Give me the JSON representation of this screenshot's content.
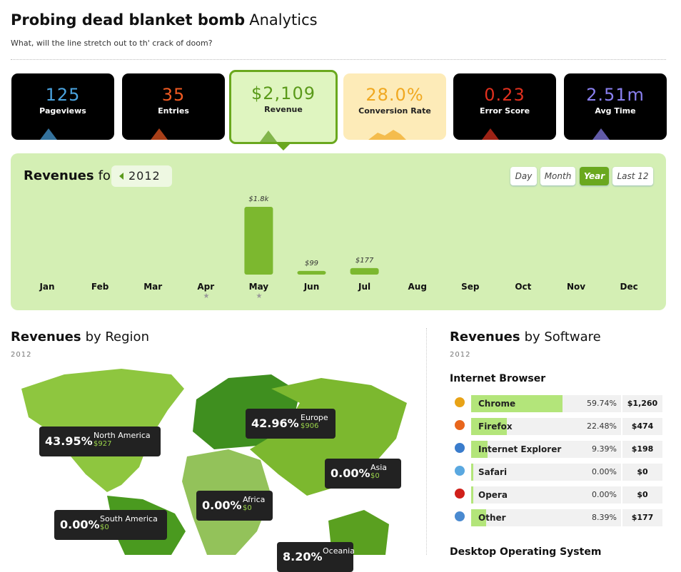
{
  "header": {
    "title_bold": "Probing dead blanket bomb",
    "title_rest": "Analytics",
    "subtitle": "What, will the line stretch out to th' crack of doom?"
  },
  "kpis": [
    {
      "value": "125",
      "label": "Pageviews"
    },
    {
      "value": "35",
      "label": "Entries"
    },
    {
      "value": "$2,109",
      "label": "Revenue"
    },
    {
      "value": "28.0%",
      "label": "Conversion Rate"
    },
    {
      "value": "0.23",
      "label": "Error Score"
    },
    {
      "value": "2.51m",
      "label": "Avg Time"
    }
  ],
  "revenue_panel": {
    "title_bold": "Revenues",
    "title_rest": "for",
    "year": "2012",
    "buttons": [
      "Day",
      "Month",
      "Year",
      "Last 12"
    ],
    "active_button": "Year",
    "chart": {
      "type": "bar",
      "categories": [
        "Jan",
        "Feb",
        "Mar",
        "Apr",
        "May",
        "Jun",
        "Jul",
        "Aug",
        "Sep",
        "Oct",
        "Nov",
        "Dec"
      ],
      "values": [
        0,
        0,
        0,
        0,
        1833,
        99,
        177,
        0,
        0,
        0,
        0,
        0
      ],
      "value_labels": [
        null,
        null,
        null,
        null,
        "$1.8k",
        "$99",
        "$177",
        null,
        null,
        null,
        null,
        null
      ],
      "color": "#7cb82f"
    }
  },
  "region": {
    "title_bold": "Revenues",
    "title_rest": "by Region",
    "year": "2012",
    "labels": [
      {
        "percent": "43.95%",
        "name": "North America",
        "amount": "$927"
      },
      {
        "percent": "42.96%",
        "name": "Europe",
        "amount": "$906"
      },
      {
        "percent": "0.00%",
        "name": "Asia",
        "amount": "$0"
      },
      {
        "percent": "0.00%",
        "name": "Africa",
        "amount": "$0"
      },
      {
        "percent": "0.00%",
        "name": "South America",
        "amount": "$0"
      },
      {
        "percent": "8.20%",
        "name": "Oceania"
      }
    ]
  },
  "software": {
    "title_bold": "Revenues",
    "title_rest": "by Software",
    "year": "2012",
    "section": "Internet Browser",
    "rows": [
      {
        "name": "Chrome",
        "share": 59.74,
        "share_label": "59.74%",
        "amount": "$1,260"
      },
      {
        "name": "Firefox",
        "share": 22.48,
        "share_label": "22.48%",
        "amount": "$474"
      },
      {
        "name": "Internet Explorer",
        "share": 9.39,
        "share_label": "9.39%",
        "amount": "$198"
      },
      {
        "name": "Safari",
        "share": 0,
        "share_label": "0.00%",
        "amount": "$0"
      },
      {
        "name": "Opera",
        "share": 0,
        "share_label": "0.00%",
        "amount": "$0"
      },
      {
        "name": "Other",
        "share": 8.39,
        "share_label": "8.39%",
        "amount": "$177"
      }
    ],
    "next_section": "Desktop Operating System"
  }
}
